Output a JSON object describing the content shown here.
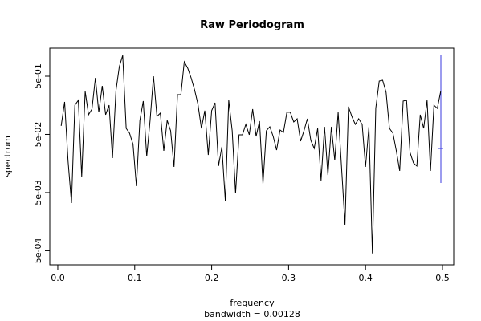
{
  "chart_data": {
    "type": "line",
    "title": "Raw Periodogram",
    "xlabel": "frequency",
    "sublabel": "bandwidth = 0.00128",
    "ylabel": "spectrum",
    "color": "#000000",
    "log_y": true,
    "grid": false,
    "xlim": [
      -0.0104,
      0.5146
    ],
    "ylim": [
      0.000286,
      1.52
    ],
    "xticks": [
      {
        "value": 0,
        "label": "0.0"
      },
      0.1,
      0.2,
      0.3,
      0.4,
      0.5
    ],
    "yticks": [
      {
        "value": 0.0005,
        "label": "5e-04"
      },
      {
        "value": 0.005,
        "label": "5e-03"
      },
      {
        "value": 0.05,
        "label": "5e-02"
      },
      {
        "value": 0.5,
        "label": "5e-01"
      }
    ],
    "x": [
      0.0044,
      0.0089,
      0.0133,
      0.0178,
      0.0222,
      0.0267,
      0.0311,
      0.0356,
      0.04,
      0.0444,
      0.0489,
      0.0533,
      0.0578,
      0.0622,
      0.0667,
      0.0711,
      0.0756,
      0.08,
      0.0844,
      0.0889,
      0.0933,
      0.0978,
      0.1022,
      0.1067,
      0.1111,
      0.1156,
      0.12,
      0.1244,
      0.1289,
      0.1333,
      0.1378,
      0.1422,
      0.1467,
      0.1511,
      0.1556,
      0.16,
      0.1644,
      0.1689,
      0.1733,
      0.1778,
      0.1822,
      0.1867,
      0.1911,
      0.1956,
      0.2,
      0.2044,
      0.2089,
      0.2133,
      0.2178,
      0.2222,
      0.2267,
      0.2311,
      0.2356,
      0.24,
      0.2444,
      0.2489,
      0.2533,
      0.2578,
      0.2622,
      0.2667,
      0.2711,
      0.2756,
      0.28,
      0.2844,
      0.2889,
      0.2933,
      0.2978,
      0.3022,
      0.3067,
      0.3111,
      0.3156,
      0.32,
      0.3244,
      0.3289,
      0.3333,
      0.3378,
      0.3422,
      0.3467,
      0.3511,
      0.3556,
      0.36,
      0.3644,
      0.3689,
      0.3733,
      0.3778,
      0.3822,
      0.3867,
      0.3911,
      0.3956,
      0.4,
      0.4044,
      0.4089,
      0.4133,
      0.4178,
      0.4222,
      0.4267,
      0.4311,
      0.4356,
      0.44,
      0.4444,
      0.4489,
      0.4533,
      0.4578,
      0.4622,
      0.4667,
      0.4711,
      0.4756,
      0.48,
      0.4844,
      0.4889,
      0.4933,
      0.4978
    ],
    "values": [
      0.07,
      0.181,
      0.0178,
      0.00331,
      0.159,
      0.193,
      0.0094,
      0.274,
      0.109,
      0.136,
      0.469,
      0.12,
      0.341,
      0.109,
      0.159,
      0.0196,
      0.282,
      0.732,
      1.14,
      0.0634,
      0.0525,
      0.0337,
      0.00644,
      0.0871,
      0.187,
      0.0209,
      0.0871,
      0.5,
      0.102,
      0.116,
      0.0261,
      0.0871,
      0.0577,
      0.0138,
      0.241,
      0.241,
      0.885,
      0.687,
      0.469,
      0.292,
      0.165,
      0.0634,
      0.128,
      0.0222,
      0.128,
      0.175,
      0.0143,
      0.0306,
      0.00352,
      0.193,
      0.0577,
      0.00484,
      0.0492,
      0.0492,
      0.0743,
      0.0492,
      0.136,
      0.0462,
      0.0845,
      0.0071,
      0.0577,
      0.0676,
      0.0462,
      0.0269,
      0.0596,
      0.0541,
      0.12,
      0.12,
      0.0819,
      0.0929,
      0.0382,
      0.0577,
      0.0929,
      0.0394,
      0.0287,
      0.0634,
      0.00805,
      0.0676,
      0.01,
      0.0676,
      0.0178,
      0.12,
      0.013,
      0.0014,
      0.15,
      0.102,
      0.0743,
      0.0929,
      0.0743,
      0.0138,
      0.0676,
      0.00045,
      0.14,
      0.413,
      0.427,
      0.265,
      0.0634,
      0.0525,
      0.0261,
      0.0118,
      0.187,
      0.193,
      0.0245,
      0.0162,
      0.0143,
      0.109,
      0.0634,
      0.193,
      0.0118,
      0.159,
      0.14,
      0.28
    ]
  }
}
